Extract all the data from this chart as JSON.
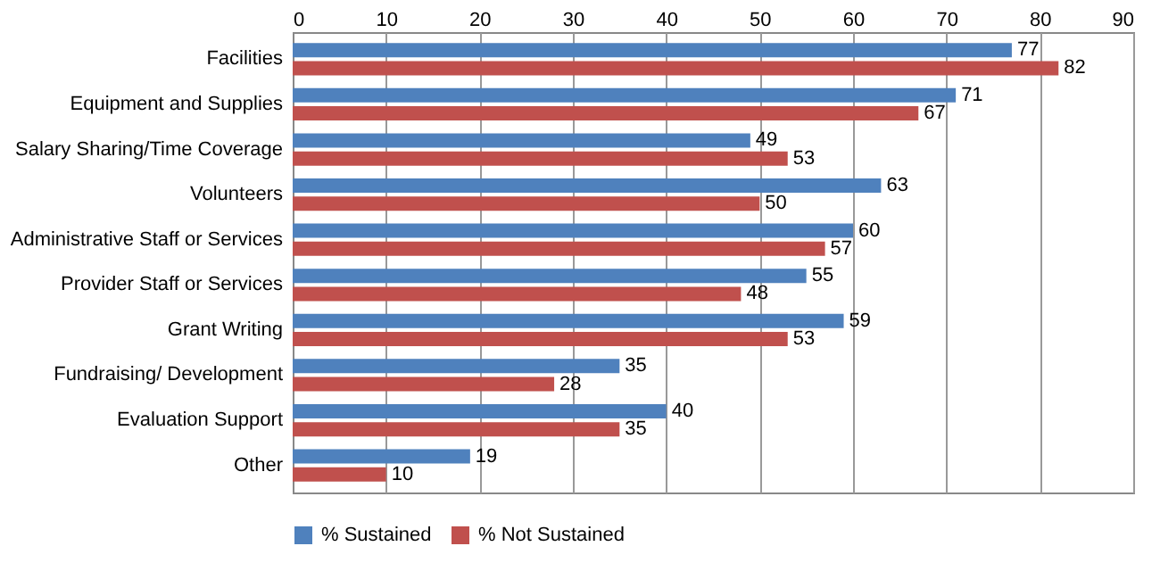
{
  "chart_data": {
    "type": "bar",
    "orientation": "horizontal",
    "categories": [
      "Facilities",
      "Equipment and Supplies",
      "Salary Sharing/Time Coverage",
      "Volunteers",
      "Administrative Staff or Services",
      "Provider Staff or Services",
      "Grant Writing",
      "Fundraising/ Development",
      "Evaluation Support",
      "Other"
    ],
    "series": [
      {
        "name": "% Sustained",
        "color": "#4f81bd",
        "values": [
          77,
          71,
          49,
          63,
          60,
          55,
          59,
          35,
          40,
          19
        ]
      },
      {
        "name": "% Not Sustained",
        "color": "#c0504d",
        "values": [
          82,
          67,
          53,
          50,
          57,
          48,
          53,
          28,
          35,
          10
        ]
      }
    ],
    "xlim": [
      0,
      90
    ],
    "xticks": [
      0,
      10,
      20,
      30,
      40,
      50,
      60,
      70,
      80,
      90
    ],
    "grid": "x",
    "legend": "bottom",
    "data_labels": true
  }
}
